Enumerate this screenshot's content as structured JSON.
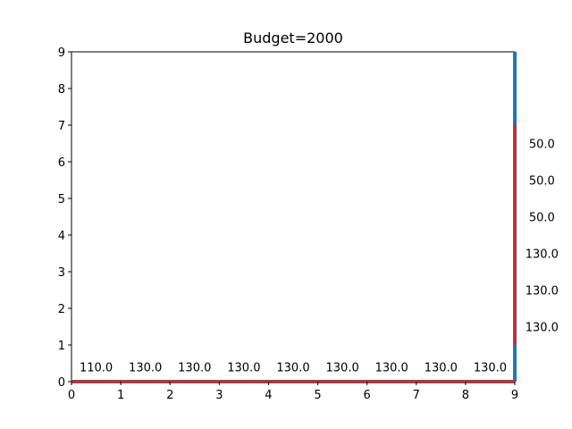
{
  "chart_data": {
    "type": "line",
    "title": "Budget=2000",
    "xlabel": "",
    "ylabel": "",
    "xlim": [
      0,
      9
    ],
    "ylim": [
      0,
      9
    ],
    "x_ticks": [
      0,
      1,
      2,
      3,
      4,
      5,
      6,
      7,
      8,
      9
    ],
    "y_ticks": [
      0,
      1,
      2,
      3,
      4,
      5,
      6,
      7,
      8,
      9
    ],
    "grid": false,
    "colors": {
      "base": "#1f77b4",
      "path": "#d62728"
    },
    "base_segments": [
      {
        "x": [
          0,
          9
        ],
        "y": [
          0,
          0
        ]
      },
      {
        "x": [
          9,
          9
        ],
        "y": [
          0,
          9
        ]
      }
    ],
    "path_segments": [
      {
        "x": [
          0,
          9
        ],
        "y": [
          0,
          0
        ]
      },
      {
        "x": [
          9,
          9
        ],
        "y": [
          1,
          7
        ]
      }
    ],
    "edge_labels": [
      {
        "x": 0.5,
        "y": 0.4,
        "text": "110.0"
      },
      {
        "x": 1.5,
        "y": 0.4,
        "text": "130.0"
      },
      {
        "x": 2.5,
        "y": 0.4,
        "text": "130.0"
      },
      {
        "x": 3.5,
        "y": 0.4,
        "text": "130.0"
      },
      {
        "x": 4.5,
        "y": 0.4,
        "text": "130.0"
      },
      {
        "x": 5.5,
        "y": 0.4,
        "text": "130.0"
      },
      {
        "x": 6.5,
        "y": 0.4,
        "text": "130.0"
      },
      {
        "x": 7.5,
        "y": 0.4,
        "text": "130.0"
      },
      {
        "x": 8.5,
        "y": 0.4,
        "text": "130.0"
      },
      {
        "x": 9.55,
        "y": 6.5,
        "text": "50.0"
      },
      {
        "x": 9.55,
        "y": 5.5,
        "text": "50.0"
      },
      {
        "x": 9.55,
        "y": 4.5,
        "text": "50.0"
      },
      {
        "x": 9.55,
        "y": 3.5,
        "text": "130.0"
      },
      {
        "x": 9.55,
        "y": 2.5,
        "text": "130.0"
      },
      {
        "x": 9.55,
        "y": 1.5,
        "text": "130.0"
      }
    ]
  }
}
